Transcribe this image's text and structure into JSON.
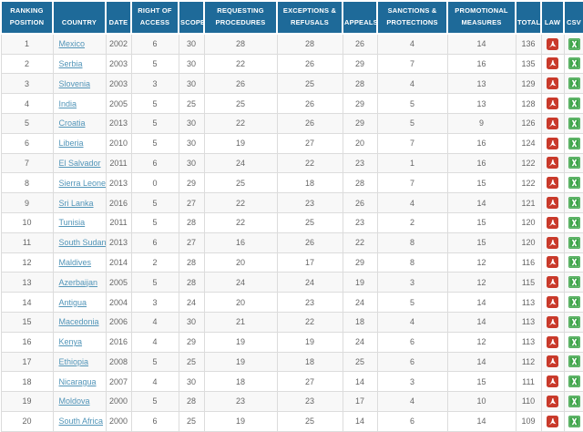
{
  "columns": [
    {
      "id": "position",
      "label": "RANKING POSITION"
    },
    {
      "id": "country",
      "label": "COUNTRY"
    },
    {
      "id": "date",
      "label": "DATE"
    },
    {
      "id": "right_of_access",
      "label": "RIGHT OF ACCESS"
    },
    {
      "id": "scope",
      "label": "SCOPE"
    },
    {
      "id": "requesting_procedures",
      "label": "REQUESTING PROCEDURES"
    },
    {
      "id": "exceptions_refusals",
      "label": "EXCEPTIONS & REFUSALS"
    },
    {
      "id": "appeals",
      "label": "APPEALS"
    },
    {
      "id": "sanctions_protections",
      "label": "SANCTIONS & PROTECTIONS"
    },
    {
      "id": "promotional_measures",
      "label": "PROMOTIONAL MEASURES"
    },
    {
      "id": "total",
      "label": "TOTAL"
    },
    {
      "id": "law",
      "label": "LAW"
    },
    {
      "id": "csv",
      "label": "CSV"
    }
  ],
  "rows": [
    {
      "position": "1",
      "country": "Mexico",
      "date": "2002",
      "right_of_access": "6",
      "scope": "30",
      "requesting_procedures": "28",
      "exceptions_refusals": "28",
      "appeals": "26",
      "sanctions_protections": "4",
      "promotional_measures": "14",
      "total": "136"
    },
    {
      "position": "2",
      "country": "Serbia",
      "date": "2003",
      "right_of_access": "5",
      "scope": "30",
      "requesting_procedures": "22",
      "exceptions_refusals": "26",
      "appeals": "29",
      "sanctions_protections": "7",
      "promotional_measures": "16",
      "total": "135"
    },
    {
      "position": "3",
      "country": "Slovenia",
      "date": "2003",
      "right_of_access": "3",
      "scope": "30",
      "requesting_procedures": "26",
      "exceptions_refusals": "25",
      "appeals": "28",
      "sanctions_protections": "4",
      "promotional_measures": "13",
      "total": "129"
    },
    {
      "position": "4",
      "country": "India",
      "date": "2005",
      "right_of_access": "5",
      "scope": "25",
      "requesting_procedures": "25",
      "exceptions_refusals": "26",
      "appeals": "29",
      "sanctions_protections": "5",
      "promotional_measures": "13",
      "total": "128"
    },
    {
      "position": "5",
      "country": "Croatia",
      "date": "2013",
      "right_of_access": "5",
      "scope": "30",
      "requesting_procedures": "22",
      "exceptions_refusals": "26",
      "appeals": "29",
      "sanctions_protections": "5",
      "promotional_measures": "9",
      "total": "126"
    },
    {
      "position": "6",
      "country": "Liberia",
      "date": "2010",
      "right_of_access": "5",
      "scope": "30",
      "requesting_procedures": "19",
      "exceptions_refusals": "27",
      "appeals": "20",
      "sanctions_protections": "7",
      "promotional_measures": "16",
      "total": "124"
    },
    {
      "position": "7",
      "country": "El Salvador",
      "date": "2011",
      "right_of_access": "6",
      "scope": "30",
      "requesting_procedures": "24",
      "exceptions_refusals": "22",
      "appeals": "23",
      "sanctions_protections": "1",
      "promotional_measures": "16",
      "total": "122"
    },
    {
      "position": "8",
      "country": "Sierra Leone",
      "date": "2013",
      "right_of_access": "0",
      "scope": "29",
      "requesting_procedures": "25",
      "exceptions_refusals": "18",
      "appeals": "28",
      "sanctions_protections": "7",
      "promotional_measures": "15",
      "total": "122"
    },
    {
      "position": "9",
      "country": "Sri Lanka",
      "date": "2016",
      "right_of_access": "5",
      "scope": "27",
      "requesting_procedures": "22",
      "exceptions_refusals": "23",
      "appeals": "26",
      "sanctions_protections": "4",
      "promotional_measures": "14",
      "total": "121"
    },
    {
      "position": "10",
      "country": "Tunisia",
      "date": "2011",
      "right_of_access": "5",
      "scope": "28",
      "requesting_procedures": "22",
      "exceptions_refusals": "25",
      "appeals": "23",
      "sanctions_protections": "2",
      "promotional_measures": "15",
      "total": "120"
    },
    {
      "position": "11",
      "country": "South Sudan",
      "date": "2013",
      "right_of_access": "6",
      "scope": "27",
      "requesting_procedures": "16",
      "exceptions_refusals": "26",
      "appeals": "22",
      "sanctions_protections": "8",
      "promotional_measures": "15",
      "total": "120"
    },
    {
      "position": "12",
      "country": "Maldives",
      "date": "2014",
      "right_of_access": "2",
      "scope": "28",
      "requesting_procedures": "20",
      "exceptions_refusals": "17",
      "appeals": "29",
      "sanctions_protections": "8",
      "promotional_measures": "12",
      "total": "116"
    },
    {
      "position": "13",
      "country": "Azerbaijan",
      "date": "2005",
      "right_of_access": "5",
      "scope": "28",
      "requesting_procedures": "24",
      "exceptions_refusals": "24",
      "appeals": "19",
      "sanctions_protections": "3",
      "promotional_measures": "12",
      "total": "115"
    },
    {
      "position": "14",
      "country": "Antigua",
      "date": "2004",
      "right_of_access": "3",
      "scope": "24",
      "requesting_procedures": "20",
      "exceptions_refusals": "23",
      "appeals": "24",
      "sanctions_protections": "5",
      "promotional_measures": "14",
      "total": "113"
    },
    {
      "position": "15",
      "country": "Macedonia",
      "date": "2006",
      "right_of_access": "4",
      "scope": "30",
      "requesting_procedures": "21",
      "exceptions_refusals": "22",
      "appeals": "18",
      "sanctions_protections": "4",
      "promotional_measures": "14",
      "total": "113"
    },
    {
      "position": "16",
      "country": "Kenya",
      "date": "2016",
      "right_of_access": "4",
      "scope": "29",
      "requesting_procedures": "19",
      "exceptions_refusals": "19",
      "appeals": "24",
      "sanctions_protections": "6",
      "promotional_measures": "12",
      "total": "113"
    },
    {
      "position": "17",
      "country": "Ethiopia",
      "date": "2008",
      "right_of_access": "5",
      "scope": "25",
      "requesting_procedures": "19",
      "exceptions_refusals": "18",
      "appeals": "25",
      "sanctions_protections": "6",
      "promotional_measures": "14",
      "total": "112"
    },
    {
      "position": "18",
      "country": "Nicaragua",
      "date": "2007",
      "right_of_access": "4",
      "scope": "30",
      "requesting_procedures": "18",
      "exceptions_refusals": "27",
      "appeals": "14",
      "sanctions_protections": "3",
      "promotional_measures": "15",
      "total": "111"
    },
    {
      "position": "19",
      "country": "Moldova",
      "date": "2000",
      "right_of_access": "5",
      "scope": "28",
      "requesting_procedures": "23",
      "exceptions_refusals": "23",
      "appeals": "17",
      "sanctions_protections": "4",
      "promotional_measures": "10",
      "total": "110"
    },
    {
      "position": "20",
      "country": "South Africa",
      "date": "2000",
      "right_of_access": "6",
      "scope": "25",
      "requesting_procedures": "19",
      "exceptions_refusals": "25",
      "appeals": "14",
      "sanctions_protections": "6",
      "promotional_measures": "14",
      "total": "109"
    }
  ],
  "icons": {
    "law": "pdf-icon",
    "csv": "excel-icon"
  },
  "colors": {
    "header_bg": "#1e6a99",
    "link": "#5295b8",
    "stripe": "#f8f8f8",
    "border": "#dcdcdc",
    "text": "#666666",
    "pdf_red": "#c93a2b",
    "excel_green": "#3fa54a"
  }
}
